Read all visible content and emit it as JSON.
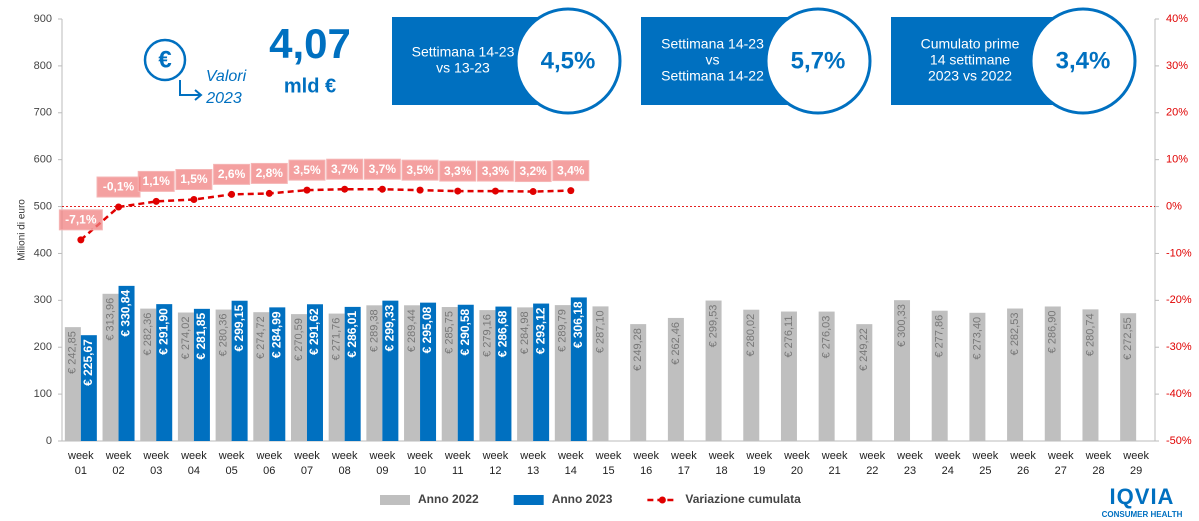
{
  "chart_data": {
    "type": "bar",
    "y_label": "Milioni di euro",
    "categories": [
      "week 01",
      "week 02",
      "week 03",
      "week 04",
      "week 05",
      "week 06",
      "week 07",
      "week 08",
      "week 09",
      "week 10",
      "week 11",
      "week 12",
      "week 13",
      "week 14",
      "week 15",
      "week 16",
      "week 17",
      "week 18",
      "week 19",
      "week 20",
      "week 21",
      "week 22",
      "week 23",
      "week 24",
      "week 25",
      "week 26",
      "week 27",
      "week 28",
      "week 29"
    ],
    "series": [
      {
        "name": "Anno 2022",
        "color": "#bfbfbf",
        "type": "bar",
        "values": [
          242.85,
          313.96,
          282.36,
          274.02,
          280.36,
          274.72,
          270.59,
          271.76,
          289.38,
          289.44,
          285.75,
          279.16,
          284.98,
          289.79,
          287.1,
          249.28,
          262.46,
          299.53,
          280.02,
          276.11,
          276.03,
          249.22,
          300.33,
          277.86,
          273.4,
          282.53,
          286.9,
          280.74,
          272.55
        ],
        "value_labels": [
          "€ 242,85",
          "€ 313,96",
          "€ 282,36",
          "€ 274,02",
          "€ 280,36",
          "€ 274,72",
          "€ 270,59",
          "€ 271,76",
          "€ 289,38",
          "€ 289,44",
          "€ 285,75",
          "€ 279,16",
          "€ 284,98",
          "€ 289,79",
          "€ 287,10",
          "€ 249,28",
          "€ 262,46",
          "€ 299,53",
          "€ 280,02",
          "€ 276,11",
          "€ 276,03",
          "€ 249,22",
          "€ 300,33",
          "€ 277,86",
          "€ 273,40",
          "€ 282,53",
          "€ 286,90",
          "€ 280,74",
          "€ 272,55"
        ]
      },
      {
        "name": "Anno 2023",
        "color": "#0070c0",
        "type": "bar",
        "values": [
          225.67,
          330.84,
          291.9,
          281.85,
          299.15,
          284.99,
          291.62,
          286.01,
          299.33,
          295.08,
          290.58,
          286.68,
          293.12,
          306.18,
          null,
          null,
          null,
          null,
          null,
          null,
          null,
          null,
          null,
          null,
          null,
          null,
          null,
          null,
          null
        ],
        "value_labels": [
          "€ 225,67",
          "€ 330,84",
          "€ 291,90",
          "€ 281,85",
          "€ 299,15",
          "€ 284,99",
          "€ 291,62",
          "€ 286,01",
          "€ 299,33",
          "€ 295,08",
          "€ 290,58",
          "€ 286,68",
          "€ 293,12",
          "€ 306,18",
          null,
          null,
          null,
          null,
          null,
          null,
          null,
          null,
          null,
          null,
          null,
          null,
          null,
          null,
          null
        ]
      },
      {
        "name": "Variazione cumulata",
        "color": "#e00000",
        "type": "line",
        "axis": "y2",
        "values": [
          -7.1,
          -0.1,
          1.1,
          1.5,
          2.6,
          2.8,
          3.5,
          3.7,
          3.7,
          3.5,
          3.3,
          3.3,
          3.2,
          3.4,
          null,
          null,
          null,
          null,
          null,
          null,
          null,
          null,
          null,
          null,
          null,
          null,
          null,
          null,
          null
        ],
        "value_labels": [
          "-7,1%",
          "-0,1%",
          "1,1%",
          "1,5%",
          "2,6%",
          "2,8%",
          "3,5%",
          "3,7%",
          "3,7%",
          "3,5%",
          "3,3%",
          "3,3%",
          "3,2%",
          "3,4%",
          null,
          null,
          null,
          null,
          null,
          null,
          null,
          null,
          null,
          null,
          null,
          null,
          null,
          null,
          null
        ]
      }
    ],
    "ylim": [
      0,
      900
    ],
    "yticks": [
      0,
      100,
      200,
      300,
      400,
      500,
      600,
      700,
      800,
      900
    ],
    "y2lim": [
      -50,
      40
    ],
    "y2ticks": [
      {
        "value": 40,
        "label": "40%"
      },
      {
        "value": 30,
        "label": "30%"
      },
      {
        "value": 20,
        "label": "20%"
      },
      {
        "value": 10,
        "label": "10%"
      },
      {
        "value": 0,
        "label": "0%"
      },
      {
        "value": -10,
        "label": "-10%"
      },
      {
        "value": -20,
        "label": "-20%"
      },
      {
        "value": -30,
        "label": "-30%"
      },
      {
        "value": -40,
        "label": "-40%"
      },
      {
        "value": -50,
        "label": "-50%"
      }
    ],
    "reference_line_y2": 0,
    "legend": "bottom"
  },
  "headline": {
    "icon": "€",
    "caption": [
      "Valori",
      "2023"
    ],
    "value": "4,07",
    "unit": "mld €"
  },
  "info_boxes": [
    {
      "lines": [
        "Settimana 14-23",
        "vs 13-23"
      ],
      "value": "4,5%"
    },
    {
      "lines": [
        "Settimana 14-23",
        "vs",
        "Settimana 14-22"
      ],
      "value": "5,7%"
    },
    {
      "lines": [
        "Cumulato prime",
        "14 settimane",
        "2023 vs 2022"
      ],
      "value": "3,4%"
    }
  ],
  "logo": {
    "name": "IQVIA",
    "tagline": "CONSUMER HEALTH"
  }
}
